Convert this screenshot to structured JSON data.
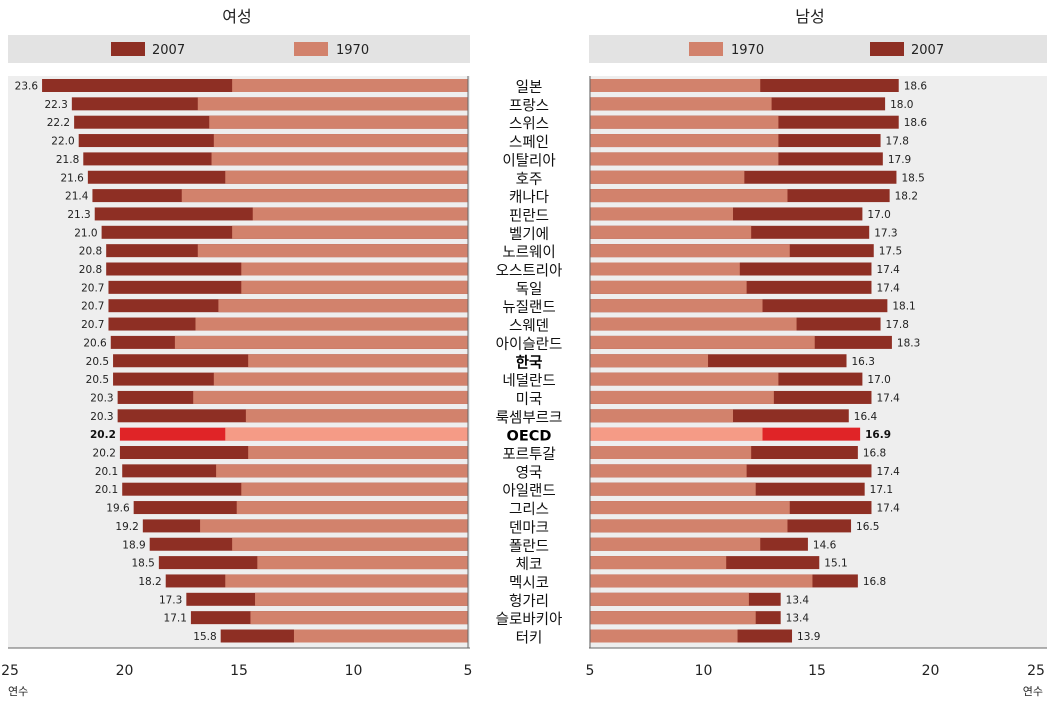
{
  "chart_data": {
    "type": "bar",
    "titles": {
      "female": "여성",
      "male": "남성"
    },
    "unit_label": "연수",
    "highlight": [
      "한국",
      "OECD"
    ],
    "colors": {
      "bar_2007": "#8e2f24",
      "bar_1970": "#d2826c",
      "oecd_2007": "#e02427",
      "oecd_1970": "#f59b86",
      "legend_bg": "#e3e3e3"
    },
    "female": {
      "legend": [
        "2007",
        "1970"
      ],
      "x_ticks": [
        25,
        20,
        15,
        10,
        5
      ],
      "xlim": [
        25,
        5
      ],
      "rows": [
        {
          "country": "일본",
          "v2007": 23.6,
          "v1970": 15.3
        },
        {
          "country": "프랑스",
          "v2007": 22.3,
          "v1970": 16.8
        },
        {
          "country": "스위스",
          "v2007": 22.2,
          "v1970": 16.3
        },
        {
          "country": "스페인",
          "v2007": 22.0,
          "v1970": 16.1
        },
        {
          "country": "이탈리아",
          "v2007": 21.8,
          "v1970": 16.2
        },
        {
          "country": "호주",
          "v2007": 21.6,
          "v1970": 15.6
        },
        {
          "country": "캐나다",
          "v2007": 21.4,
          "v1970": 17.5
        },
        {
          "country": "핀란드",
          "v2007": 21.3,
          "v1970": 14.4
        },
        {
          "country": "벨기에",
          "v2007": 21.0,
          "v1970": 15.3
        },
        {
          "country": "노르웨이",
          "v2007": 20.8,
          "v1970": 16.8
        },
        {
          "country": "오스트리아",
          "v2007": 20.8,
          "v1970": 14.9
        },
        {
          "country": "독일",
          "v2007": 20.7,
          "v1970": 14.9
        },
        {
          "country": "뉴질랜드",
          "v2007": 20.7,
          "v1970": 15.9
        },
        {
          "country": "스웨덴",
          "v2007": 20.7,
          "v1970": 16.9
        },
        {
          "country": "아이슬란드",
          "v2007": 20.6,
          "v1970": 17.8
        },
        {
          "country": "한국",
          "v2007": 20.5,
          "v1970": 14.6
        },
        {
          "country": "네덜란드",
          "v2007": 20.5,
          "v1970": 16.1
        },
        {
          "country": "미국",
          "v2007": 20.3,
          "v1970": 17.0
        },
        {
          "country": "룩셈부르크",
          "v2007": 20.3,
          "v1970": 14.7
        },
        {
          "country": "OECD",
          "v2007": 20.2,
          "v1970": 15.6
        },
        {
          "country": "포르투갈",
          "v2007": 20.2,
          "v1970": 14.6
        },
        {
          "country": "영국",
          "v2007": 20.1,
          "v1970": 16.0
        },
        {
          "country": "아일랜드",
          "v2007": 20.1,
          "v1970": 14.9
        },
        {
          "country": "그리스",
          "v2007": 19.6,
          "v1970": 15.1
        },
        {
          "country": "덴마크",
          "v2007": 19.2,
          "v1970": 16.7
        },
        {
          "country": "폴란드",
          "v2007": 18.9,
          "v1970": 15.3
        },
        {
          "country": "체코",
          "v2007": 18.5,
          "v1970": 14.2
        },
        {
          "country": "멕시코",
          "v2007": 18.2,
          "v1970": 15.6
        },
        {
          "country": "헝가리",
          "v2007": 17.3,
          "v1970": 14.3
        },
        {
          "country": "슬로바키아",
          "v2007": 17.1,
          "v1970": 14.5
        },
        {
          "country": "터키",
          "v2007": 15.8,
          "v1970": 12.6
        }
      ]
    },
    "male": {
      "legend": [
        "1970",
        "2007"
      ],
      "x_ticks": [
        5,
        10,
        15,
        20,
        25
      ],
      "xlim": [
        5,
        25
      ],
      "rows": [
        {
          "country": "일본",
          "v2007": 18.6,
          "v1970": 12.5
        },
        {
          "country": "프랑스",
          "v2007": 18.0,
          "v1970": 13.0
        },
        {
          "country": "스위스",
          "v2007": 18.6,
          "v1970": 13.3
        },
        {
          "country": "스페인",
          "v2007": 17.8,
          "v1970": 13.3
        },
        {
          "country": "이탈리아",
          "v2007": 17.9,
          "v1970": 13.3
        },
        {
          "country": "호주",
          "v2007": 18.5,
          "v1970": 11.8
        },
        {
          "country": "캐나다",
          "v2007": 18.2,
          "v1970": 13.7
        },
        {
          "country": "핀란드",
          "v2007": 17.0,
          "v1970": 11.3
        },
        {
          "country": "벨기에",
          "v2007": 17.3,
          "v1970": 12.1
        },
        {
          "country": "노르웨이",
          "v2007": 17.5,
          "v1970": 13.8
        },
        {
          "country": "오스트리아",
          "v2007": 17.4,
          "v1970": 11.6
        },
        {
          "country": "독일",
          "v2007": 17.4,
          "v1970": 11.9
        },
        {
          "country": "뉴질랜드",
          "v2007": 18.1,
          "v1970": 12.6
        },
        {
          "country": "스웨덴",
          "v2007": 17.8,
          "v1970": 14.1
        },
        {
          "country": "아이슬란드",
          "v2007": 18.3,
          "v1970": 14.9
        },
        {
          "country": "한국",
          "v2007": 16.3,
          "v1970": 10.2
        },
        {
          "country": "네덜란드",
          "v2007": 17.0,
          "v1970": 13.3
        },
        {
          "country": "미국",
          "v2007": 17.4,
          "v1970": 13.1
        },
        {
          "country": "룩셈부르크",
          "v2007": 16.4,
          "v1970": 11.3
        },
        {
          "country": "OECD",
          "v2007": 16.9,
          "v1970": 12.6
        },
        {
          "country": "포르투갈",
          "v2007": 16.8,
          "v1970": 12.1
        },
        {
          "country": "영국",
          "v2007": 17.4,
          "v1970": 11.9
        },
        {
          "country": "아일랜드",
          "v2007": 17.1,
          "v1970": 12.3
        },
        {
          "country": "그리스",
          "v2007": 17.4,
          "v1970": 13.8
        },
        {
          "country": "덴마크",
          "v2007": 16.5,
          "v1970": 13.7
        },
        {
          "country": "폴란드",
          "v2007": 14.6,
          "v1970": 12.5
        },
        {
          "country": "체코",
          "v2007": 15.1,
          "v1970": 11.0
        },
        {
          "country": "멕시코",
          "v2007": 16.8,
          "v1970": 14.8
        },
        {
          "country": "헝가리",
          "v2007": 13.4,
          "v1970": 12.0
        },
        {
          "country": "슬로바키아",
          "v2007": 13.4,
          "v1970": 12.3
        },
        {
          "country": "터키",
          "v2007": 13.9,
          "v1970": 11.5
        }
      ]
    }
  }
}
